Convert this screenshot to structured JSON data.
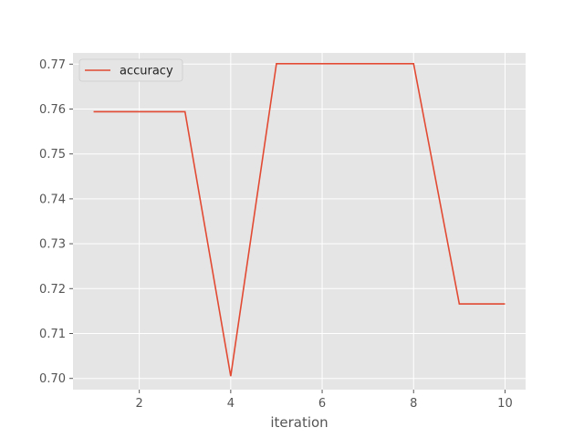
{
  "chart_data": {
    "type": "line",
    "title": "",
    "xlabel": "iteration",
    "ylabel": "",
    "x": [
      1,
      2,
      3,
      4,
      5,
      6,
      7,
      8,
      9,
      10
    ],
    "series": [
      {
        "name": "accuracy",
        "color": "#E24A33",
        "values": [
          0.7594,
          0.7594,
          0.7594,
          0.7005,
          0.7701,
          0.7701,
          0.7701,
          0.7701,
          0.7166,
          0.7166
        ]
      }
    ],
    "xlim": [
      0.55,
      10.45
    ],
    "ylim": [
      0.6975,
      0.7725
    ],
    "xticks": [
      2,
      4,
      6,
      8,
      10
    ],
    "xtick_labels": [
      "2",
      "4",
      "6",
      "8",
      "10"
    ],
    "yticks": [
      0.7,
      0.71,
      0.72,
      0.73,
      0.74,
      0.75,
      0.76,
      0.77
    ],
    "ytick_labels": [
      "0.70",
      "0.71",
      "0.72",
      "0.73",
      "0.74",
      "0.75",
      "0.76",
      "0.77"
    ],
    "grid": true,
    "legend_position": "upper-left",
    "background_color": "#E5E5E5",
    "grid_color": "#FFFFFF"
  }
}
